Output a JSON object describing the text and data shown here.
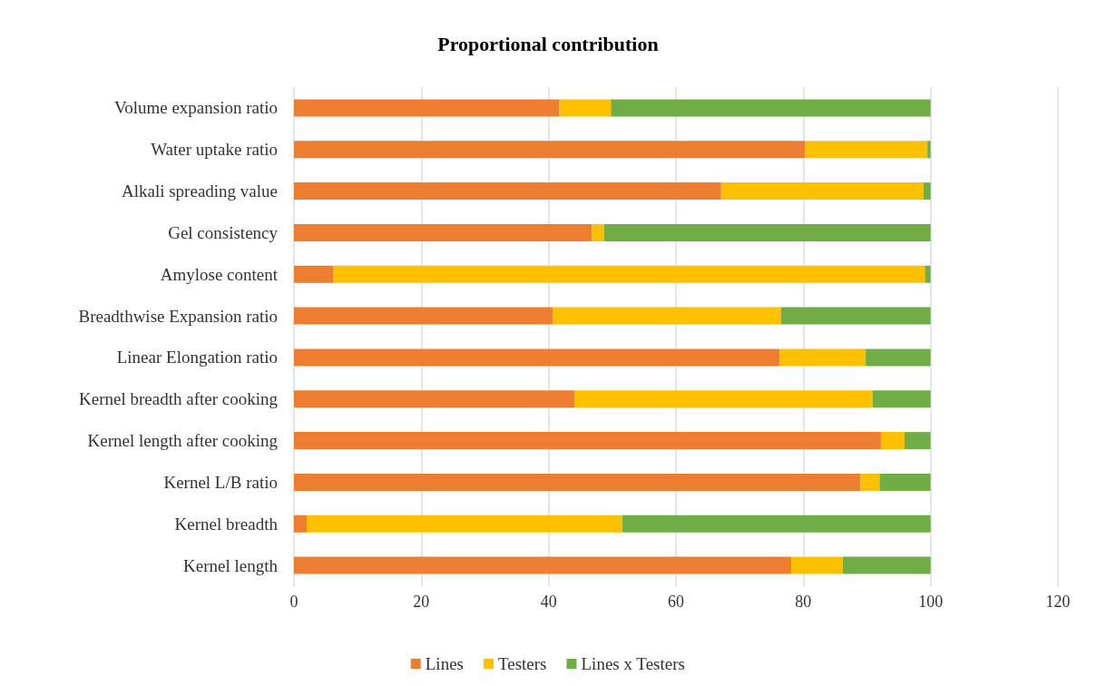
{
  "chart_data": {
    "type": "bar",
    "title": "Proportional contribution",
    "orientation": "horizontal",
    "stacked": true,
    "categories": [
      "Volume expansion ratio",
      "Water uptake ratio",
      "Alkali spreading value",
      "Gel consistency",
      "Amylose content",
      "Breadthwise Expansion ratio",
      "Linear Elongation ratio",
      "Kernel breadth after cooking",
      "Kernel length after cooking",
      "Kernel L/B ratio",
      "Kernel breadth",
      "Kernel length"
    ],
    "series": [
      {
        "name": "Lines",
        "color": "#ed7d31",
        "values": [
          41.7,
          80.3,
          67.1,
          46.8,
          6.2,
          40.7,
          76.3,
          44.1,
          92.2,
          89.0,
          2.0,
          78.1
        ]
      },
      {
        "name": "Testers",
        "color": "#ffc000",
        "values": [
          8.1,
          19.2,
          31.8,
          1.9,
          92.9,
          35.8,
          13.5,
          46.8,
          3.7,
          3.0,
          49.6,
          8.1
        ]
      },
      {
        "name": "Lines x Testers",
        "color": "#70ad47",
        "values": [
          50.2,
          0.5,
          1.1,
          51.3,
          0.9,
          23.5,
          10.2,
          9.1,
          4.1,
          8.0,
          48.4,
          13.8
        ]
      }
    ],
    "xlim": [
      0,
      120
    ],
    "xticks": [
      0,
      20,
      40,
      60,
      80,
      100,
      120
    ],
    "grid": "x",
    "legend": "bottom"
  }
}
